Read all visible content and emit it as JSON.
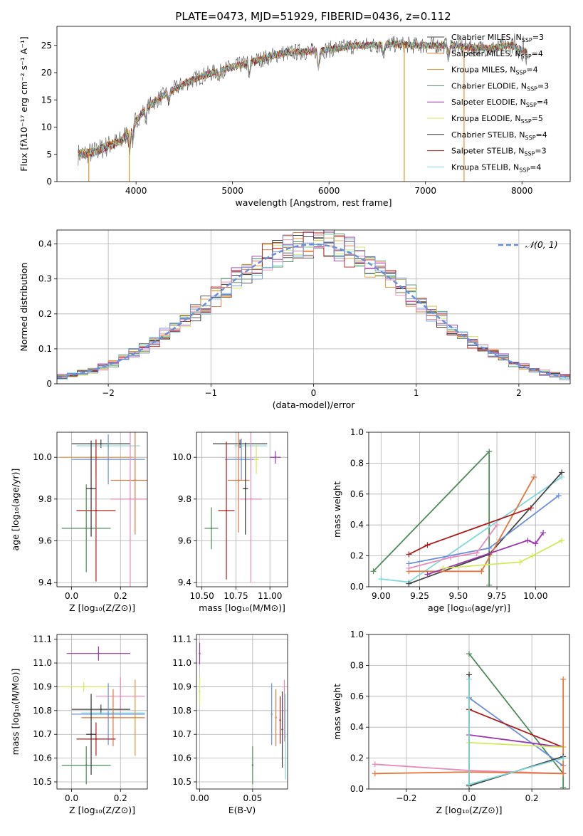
{
  "title": "PLATE=0473, MJD=51929, FIBERID=0436, z=0.112",
  "colors": {
    "chabrier_miles": "#444444",
    "salpeter_miles": "#e8743a",
    "kroupa_miles": "#e8922e",
    "chabrier_elodie": "#4f8a5b",
    "salpeter_elodie": "#9a36b0",
    "kroupa_elodie": "#d4e85a",
    "chabrier_stelib": "#333333",
    "salpeter_stelib": "#b01c1c",
    "kroupa_stelib": "#7fd8dc",
    "normal": "#6a8fdc",
    "pink": "#e889b8",
    "blue": "#6a8fdc"
  },
  "chart_data": [
    {
      "id": "spectrum",
      "type": "line",
      "title": "PLATE=0473, MJD=51929, FIBERID=0436, z=0.112",
      "xlabel": "wavelength [Angstrom, rest frame]",
      "ylabel": "Flux [fλ10⁻¹⁷ erg cm⁻² s⁻¹ A⁻¹]",
      "xlim": [
        3180,
        8500
      ],
      "ylim": [
        0,
        28.5
      ],
      "xticks": [
        4000,
        5000,
        6000,
        7000,
        8000
      ],
      "yticks": [
        0,
        5,
        10,
        15,
        20,
        25
      ],
      "legend": [
        {
          "main": "Chabrier MILES, N",
          "sub": "SSP",
          "tail": "=3",
          "color": "#444444"
        },
        {
          "main": "Salpeter MILES, N",
          "sub": "SSP",
          "tail": "=4",
          "color": "#e8743a"
        },
        {
          "main": "Kroupa MILES, N",
          "sub": "SSP",
          "tail": "=4",
          "color": "#e8922e"
        },
        {
          "main": "Chabrier ELODIE, N",
          "sub": "SSP",
          "tail": "=3",
          "color": "#4f8a5b"
        },
        {
          "main": "Salpeter ELODIE, N",
          "sub": "SSP",
          "tail": "=4",
          "color": "#9a36b0"
        },
        {
          "main": "Kroupa ELODIE, N",
          "sub": "SSP",
          "tail": "=5",
          "color": "#d4e85a"
        },
        {
          "main": "Chabrier STELIB, N",
          "sub": "SSP",
          "tail": "=4",
          "color": "#333333"
        },
        {
          "main": "Salpeter STELIB, N",
          "sub": "SSP",
          "tail": "=3",
          "color": "#b01c1c"
        },
        {
          "main": "Kroupa STELIB, N",
          "sub": "SSP",
          "tail": "=4",
          "color": "#7fd8dc"
        }
      ],
      "continuum": [
        [
          3400,
          5.0
        ],
        [
          3550,
          5.3
        ],
        [
          3700,
          6.5
        ],
        [
          3850,
          7.5
        ],
        [
          3950,
          10
        ],
        [
          4100,
          13.5
        ],
        [
          4300,
          16
        ],
        [
          4500,
          18
        ],
        [
          4700,
          19.5
        ],
        [
          4900,
          20.5
        ],
        [
          5100,
          21.5
        ],
        [
          5300,
          22.5
        ],
        [
          5500,
          23.5
        ],
        [
          5700,
          23.8
        ],
        [
          5900,
          24
        ],
        [
          6100,
          24.5
        ],
        [
          6300,
          25
        ],
        [
          6500,
          25
        ],
        [
          6700,
          25.2
        ],
        [
          6900,
          25
        ],
        [
          7100,
          25
        ],
        [
          7300,
          25
        ],
        [
          7500,
          24.5
        ],
        [
          7700,
          24.5
        ],
        [
          7900,
          25
        ],
        [
          8050,
          23.8
        ]
      ],
      "dropouts": [
        [
          3510,
          0
        ],
        [
          3930,
          0
        ],
        [
          6780,
          0
        ],
        [
          7400,
          0
        ]
      ]
    },
    {
      "id": "residuals",
      "type": "histogram",
      "xlabel": "(data-model)/error",
      "ylabel": "Normed distribution",
      "xlim": [
        -2.5,
        2.5
      ],
      "ylim": [
        0,
        0.44
      ],
      "xticks": [
        -2,
        -1,
        0,
        1,
        2
      ],
      "xtick_labels": [
        "−2",
        "−1",
        "0",
        "1",
        "2"
      ],
      "yticks": [
        0.0,
        0.1,
        0.2,
        0.3,
        0.4
      ],
      "legend": "𝒩(0, 1)",
      "normal_curve": {
        "mean": 0,
        "sigma": 1
      },
      "bin_width": 0.1
    },
    {
      "id": "age_vs_Z",
      "type": "errorbar",
      "xlabel": "Z [log₁₀(Z/Z⊙)]",
      "ylabel": "age  [log₁₀(age/yr)]",
      "xlim": [
        -0.06,
        0.31
      ],
      "ylim": [
        9.38,
        10.12
      ],
      "xticks": [
        0.0,
        0.2
      ],
      "xtick_labels": [
        "0.0",
        "0.2"
      ],
      "yticks": [
        9.4,
        9.6,
        9.8,
        10.0
      ],
      "ytick_labels": [
        "9.4",
        "9.6",
        "9.8",
        "10.0"
      ],
      "points": [
        {
          "x": 0.12,
          "y": 10.065,
          "xerr": 0.12,
          "yerr": 0.02,
          "color": "#444444"
        },
        {
          "x": 0.15,
          "y": 10.055,
          "xerr": 0.13,
          "yerr": 0.02,
          "color": "#7fd8dc"
        },
        {
          "x": 0.15,
          "y": 9.99,
          "xerr": 0.15,
          "yerr": 0.12,
          "color": "#6a8fdc"
        },
        {
          "x": 0.1,
          "y": 10.0,
          "xerr": 0.15,
          "yerr": 0.08,
          "color": "#e8922e"
        },
        {
          "x": 0.26,
          "y": 9.89,
          "xerr": 0.1,
          "yerr": 0.26,
          "color": "#e8743a"
        },
        {
          "x": 0.24,
          "y": 9.8,
          "xerr": 0.08,
          "yerr": 0.42,
          "color": "#e889b8"
        },
        {
          "x": 0.1,
          "y": 9.745,
          "xerr": 0.08,
          "yerr": 0.34,
          "color": "#b01c1c"
        },
        {
          "x": 0.06,
          "y": 9.66,
          "xerr": 0.1,
          "yerr": 0.21,
          "color": "#4f8a5b"
        },
        {
          "x": 0.08,
          "y": 9.85,
          "xerr": 0.02,
          "yerr": 0.23,
          "color": "#333333"
        }
      ]
    },
    {
      "id": "age_vs_mass",
      "type": "errorbar",
      "xlabel": "mass [log₁₀(M/M⊙)]",
      "ylabel": "",
      "xlim": [
        10.46,
        11.13
      ],
      "ylim": [
        9.38,
        10.12
      ],
      "xticks": [
        10.5,
        10.75,
        11.0
      ],
      "xtick_labels": [
        "10.50",
        "10.75",
        "11.00"
      ],
      "yticks": [
        9.4,
        9.6,
        9.8,
        10.0
      ],
      "ytick_labels": [
        "9.4",
        "9.6",
        "9.8",
        "10.0"
      ],
      "points": [
        {
          "x": 10.78,
          "y": 10.065,
          "xerr": 0.2,
          "yerr": 0.02,
          "color": "#444444"
        },
        {
          "x": 10.86,
          "y": 10.055,
          "xerr": 0.12,
          "yerr": 0.025,
          "color": "#7fd8dc"
        },
        {
          "x": 11.04,
          "y": 10.0,
          "xerr": 0.04,
          "yerr": 0.03,
          "color": "#9a36b0"
        },
        {
          "x": 10.79,
          "y": 9.99,
          "xerr": 0.12,
          "yerr": 0.1,
          "color": "#6a8fdc"
        },
        {
          "x": 10.9,
          "y": 9.99,
          "xerr": 0.02,
          "yerr": 0.07,
          "color": "#d4e85a"
        },
        {
          "x": 10.77,
          "y": 9.89,
          "xerr": 0.08,
          "yerr": 0.25,
          "color": "#e8743a"
        },
        {
          "x": 10.86,
          "y": 9.8,
          "xerr": 0.08,
          "yerr": 0.4,
          "color": "#e889b8"
        },
        {
          "x": 10.68,
          "y": 9.745,
          "xerr": 0.06,
          "yerr": 0.33,
          "color": "#b01c1c"
        },
        {
          "x": 10.57,
          "y": 9.66,
          "xerr": 0.05,
          "yerr": 0.1,
          "color": "#4f8a5b"
        },
        {
          "x": 10.82,
          "y": 9.85,
          "xerr": 0.02,
          "yerr": 0.22,
          "color": "#333333"
        }
      ]
    },
    {
      "id": "weight_vs_age",
      "type": "line",
      "xlabel": "age  [log₁₀(age/yr)]",
      "ylabel": "mass weight",
      "xlim": [
        8.92,
        10.22
      ],
      "ylim": [
        0,
        1
      ],
      "xticks": [
        9.0,
        9.25,
        9.5,
        9.75,
        10.0
      ],
      "xtick_labels": [
        "9.00",
        "9.25",
        "9.50",
        "9.75",
        "10.00"
      ],
      "yticks": [
        0,
        0.2,
        0.4,
        0.6,
        0.8,
        1.0
      ],
      "ytick_labels": [
        "0.0",
        "0.2",
        "0.4",
        "0.6",
        "0.8",
        "1.0"
      ],
      "series": [
        {
          "color": "#4f8a5b",
          "points": [
            [
              8.95,
              0.1
            ],
            [
              9.7,
              0.875
            ],
            [
              9.7,
              0.01
            ]
          ]
        },
        {
          "color": "#7fd8dc",
          "points": [
            [
              9.0,
              0.05
            ],
            [
              9.18,
              0.03
            ],
            [
              10.17,
              0.71
            ]
          ]
        },
        {
          "color": "#444444",
          "points": [
            [
              9.18,
              0.02
            ],
            [
              9.7,
              0.21
            ],
            [
              10.17,
              0.74
            ]
          ]
        },
        {
          "color": "#6a8fdc",
          "points": [
            [
              9.18,
              0.15
            ],
            [
              9.7,
              0.25
            ],
            [
              10.15,
              0.59
            ]
          ]
        },
        {
          "color": "#e8743a",
          "points": [
            [
              9.18,
              0.1
            ],
            [
              9.65,
              0.1
            ],
            [
              9.99,
              0.71
            ]
          ]
        },
        {
          "color": "#b01c1c",
          "points": [
            [
              9.18,
              0.21
            ],
            [
              9.3,
              0.27
            ],
            [
              9.97,
              0.51
            ]
          ]
        },
        {
          "color": "#9a36b0",
          "points": [
            [
              9.3,
              0.08
            ],
            [
              9.95,
              0.3
            ],
            [
              10.0,
              0.28
            ],
            [
              10.05,
              0.35
            ]
          ]
        },
        {
          "color": "#d4e85a",
          "points": [
            [
              9.4,
              0.12
            ],
            [
              9.9,
              0.16
            ],
            [
              9.98,
              0.2
            ],
            [
              10.17,
              0.3
            ]
          ]
        },
        {
          "color": "#e889b8",
          "points": [
            [
              9.18,
              0.12
            ],
            [
              9.45,
              0.19
            ],
            [
              9.62,
              0.22
            ],
            [
              9.75,
              0.4
            ]
          ]
        }
      ]
    },
    {
      "id": "mass_vs_Z",
      "type": "errorbar",
      "xlabel": "Z [log₁₀(Z/Z⊙)]",
      "ylabel": "mass [log₁₀(M/M⊙)]",
      "xlim": [
        -0.06,
        0.31
      ],
      "ylim": [
        10.47,
        11.12
      ],
      "xticks": [
        0.0,
        0.2
      ],
      "xtick_labels": [
        "0.0",
        "0.2"
      ],
      "yticks": [
        10.5,
        10.6,
        10.7,
        10.8,
        10.9,
        11.0,
        11.1
      ],
      "ytick_labels": [
        "10.5",
        "10.6",
        "10.7",
        "10.8",
        "10.9",
        "11.0",
        "11.1"
      ],
      "points": [
        {
          "x": 0.11,
          "y": 11.04,
          "xerr": 0.13,
          "yerr": 0.03,
          "color": "#9a36b0"
        },
        {
          "x": 0.05,
          "y": 10.9,
          "xerr": 0.1,
          "yerr": 0.02,
          "color": "#d4e85a"
        },
        {
          "x": 0.2,
          "y": 10.86,
          "xerr": 0.1,
          "yerr": 0.08,
          "color": "#e889b8"
        },
        {
          "x": 0.12,
          "y": 10.805,
          "xerr": 0.12,
          "yerr": 0.02,
          "color": "#444444"
        },
        {
          "x": 0.17,
          "y": 10.79,
          "xerr": 0.13,
          "yerr": 0.02,
          "color": "#7fd8dc"
        },
        {
          "x": 0.15,
          "y": 10.785,
          "xerr": 0.15,
          "yerr": 0.13,
          "color": "#6a8fdc"
        },
        {
          "x": 0.17,
          "y": 10.77,
          "xerr": 0.13,
          "yerr": 0.12,
          "color": "#e8743a"
        },
        {
          "x": 0.26,
          "y": 10.77,
          "xerr": 0.01,
          "yerr": 0.16,
          "color": "#e8922e"
        },
        {
          "x": 0.1,
          "y": 10.68,
          "xerr": 0.08,
          "yerr": 0.07,
          "color": "#b01c1c"
        },
        {
          "x": 0.06,
          "y": 10.57,
          "xerr": 0.1,
          "yerr": 0.08,
          "color": "#4f8a5b"
        },
        {
          "x": 0.08,
          "y": 10.7,
          "xerr": 0.02,
          "yerr": 0.17,
          "color": "#333333"
        }
      ]
    },
    {
      "id": "mass_vs_ebv",
      "type": "errorbar",
      "xlabel": "E(B-V)",
      "ylabel": "",
      "xlim": [
        -0.003,
        0.083
      ],
      "ylim": [
        10.47,
        11.12
      ],
      "xticks": [
        0.0,
        0.05
      ],
      "xtick_labels": [
        "0.00",
        "0.05"
      ],
      "yticks": [
        10.5,
        10.6,
        10.7,
        10.8,
        10.9,
        11.0,
        11.1
      ],
      "ytick_labels": [
        "10.5",
        "10.6",
        "10.7",
        "10.8",
        "10.9",
        "11.0",
        "11.1"
      ],
      "points": [
        {
          "x": 0.0,
          "y": 11.04,
          "xerr": 0,
          "yerr": 0.045,
          "color": "#9a36b0"
        },
        {
          "x": 0.0,
          "y": 10.88,
          "xerr": 0,
          "yerr": 0.06,
          "color": "#d4e85a"
        },
        {
          "x": 0.05,
          "y": 10.57,
          "xerr": 0,
          "yerr": 0.08,
          "color": "#4f8a5b"
        },
        {
          "x": 0.068,
          "y": 10.785,
          "xerr": 0,
          "yerr": 0.13,
          "color": "#6a8fdc"
        },
        {
          "x": 0.072,
          "y": 10.77,
          "xerr": 0,
          "yerr": 0.12,
          "color": "#e8743a"
        },
        {
          "x": 0.076,
          "y": 10.76,
          "xerr": 0,
          "yerr": 0.1,
          "color": "#b01c1c"
        },
        {
          "x": 0.078,
          "y": 10.72,
          "xerr": 0,
          "yerr": 0.16,
          "color": "#444444"
        },
        {
          "x": 0.08,
          "y": 10.8,
          "xerr": 0,
          "yerr": 0.13,
          "color": "#e889b8"
        },
        {
          "x": 0.081,
          "y": 10.69,
          "xerr": 0,
          "yerr": 0.18,
          "color": "#7fd8dc"
        }
      ]
    },
    {
      "id": "weight_vs_Z",
      "type": "line",
      "xlabel": "Z [log₁₀(Z/Z⊙)]",
      "ylabel": "mass weight",
      "xlim": [
        -0.32,
        0.32
      ],
      "ylim": [
        0,
        1
      ],
      "xticks": [
        -0.2,
        0.0,
        0.2
      ],
      "xtick_labels": [
        "−0.2",
        "0.0",
        "0.2"
      ],
      "yticks": [
        0,
        0.2,
        0.4,
        0.6,
        0.8,
        1.0
      ],
      "ytick_labels": [
        "0.0",
        "0.2",
        "0.4",
        "0.6",
        "0.8",
        "1.0"
      ],
      "series": [
        {
          "color": "#4f8a5b",
          "points": [
            [
              0.0,
              0.875
            ],
            [
              0.3,
              0.1
            ],
            [
              0.3,
              0.01
            ]
          ]
        },
        {
          "color": "#6a8fdc",
          "points": [
            [
              0.0,
              0.59
            ],
            [
              0.3,
              0.15
            ]
          ]
        },
        {
          "color": "#b01c1c",
          "points": [
            [
              0.0,
              0.515
            ],
            [
              0.3,
              0.27
            ]
          ]
        },
        {
          "color": "#9a36b0",
          "points": [
            [
              0.0,
              0.35
            ],
            [
              0.3,
              0.27
            ]
          ]
        },
        {
          "color": "#d4e85a",
          "points": [
            [
              0.0,
              0.3
            ],
            [
              0.3,
              0.27
            ]
          ]
        },
        {
          "color": "#e889b8",
          "points": [
            [
              -0.3,
              0.16
            ],
            [
              0.0,
              0.12
            ],
            [
              0.3,
              0.1
            ]
          ]
        },
        {
          "color": "#e8743a",
          "points": [
            [
              -0.3,
              0.1
            ],
            [
              0.0,
              0.11
            ],
            [
              0.3,
              0.1
            ],
            [
              0.3,
              0.71
            ]
          ]
        },
        {
          "color": "#444444",
          "points": [
            [
              0.0,
              0.74
            ],
            [
              0.0,
              0.02
            ],
            [
              0.3,
              0.21
            ]
          ]
        },
        {
          "color": "#7fd8dc",
          "points": [
            [
              0.0,
              0.71
            ],
            [
              0.0,
              0.03
            ],
            [
              0.3,
              0.2
            ]
          ]
        }
      ]
    }
  ]
}
